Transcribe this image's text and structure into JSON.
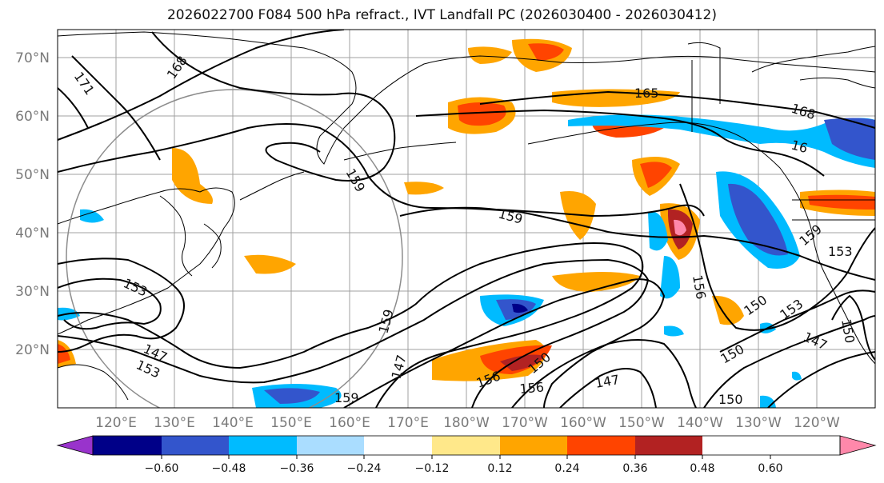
{
  "title": "2026022700 F084 500 hPa refract., IVT Landfall PC (2026030400 - 2026030412)",
  "map": {
    "lat_labels": [
      "20°N",
      "30°N",
      "40°N",
      "50°N",
      "60°N",
      "70°N"
    ],
    "lon_labels": [
      "120°E",
      "130°E",
      "140°E",
      "150°E",
      "160°E",
      "170°E",
      "180°W",
      "170°W",
      "160°W",
      "150°W",
      "140°W",
      "130°W",
      "120°W"
    ],
    "contour_labels": [
      {
        "text": "171"
      },
      {
        "text": "168"
      },
      {
        "text": "168"
      },
      {
        "text": "165"
      },
      {
        "text": "16"
      },
      {
        "text": "159"
      },
      {
        "text": "159"
      },
      {
        "text": "159"
      },
      {
        "text": "159"
      },
      {
        "text": "153"
      },
      {
        "text": "153"
      },
      {
        "text": "153"
      },
      {
        "text": "153"
      },
      {
        "text": "150"
      },
      {
        "text": "150"
      },
      {
        "text": "150"
      },
      {
        "text": "150"
      },
      {
        "text": "150"
      },
      {
        "text": "147"
      },
      {
        "text": "147"
      },
      {
        "text": "147"
      },
      {
        "text": "147"
      },
      {
        "text": "156"
      },
      {
        "text": "156"
      },
      {
        "text": "156"
      },
      {
        "text": "159"
      }
    ],
    "colors": {
      "land_outline": "#000000",
      "grid": "#a0a0a0",
      "circle": "#8c8c8c"
    }
  },
  "colorbar": {
    "ticks": [
      "−0.60",
      "−0.48",
      "−0.36",
      "−0.24",
      "−0.12",
      "0.12",
      "0.24",
      "0.36",
      "0.48",
      "0.60"
    ],
    "bins": [
      "#9933cc",
      "#000088",
      "#3355cc",
      "#00bbff",
      "#aaddff",
      "#ffffff",
      "#ffe88a",
      "#ffa500",
      "#ff4400",
      "#b22222",
      "#ff88aa"
    ]
  }
}
